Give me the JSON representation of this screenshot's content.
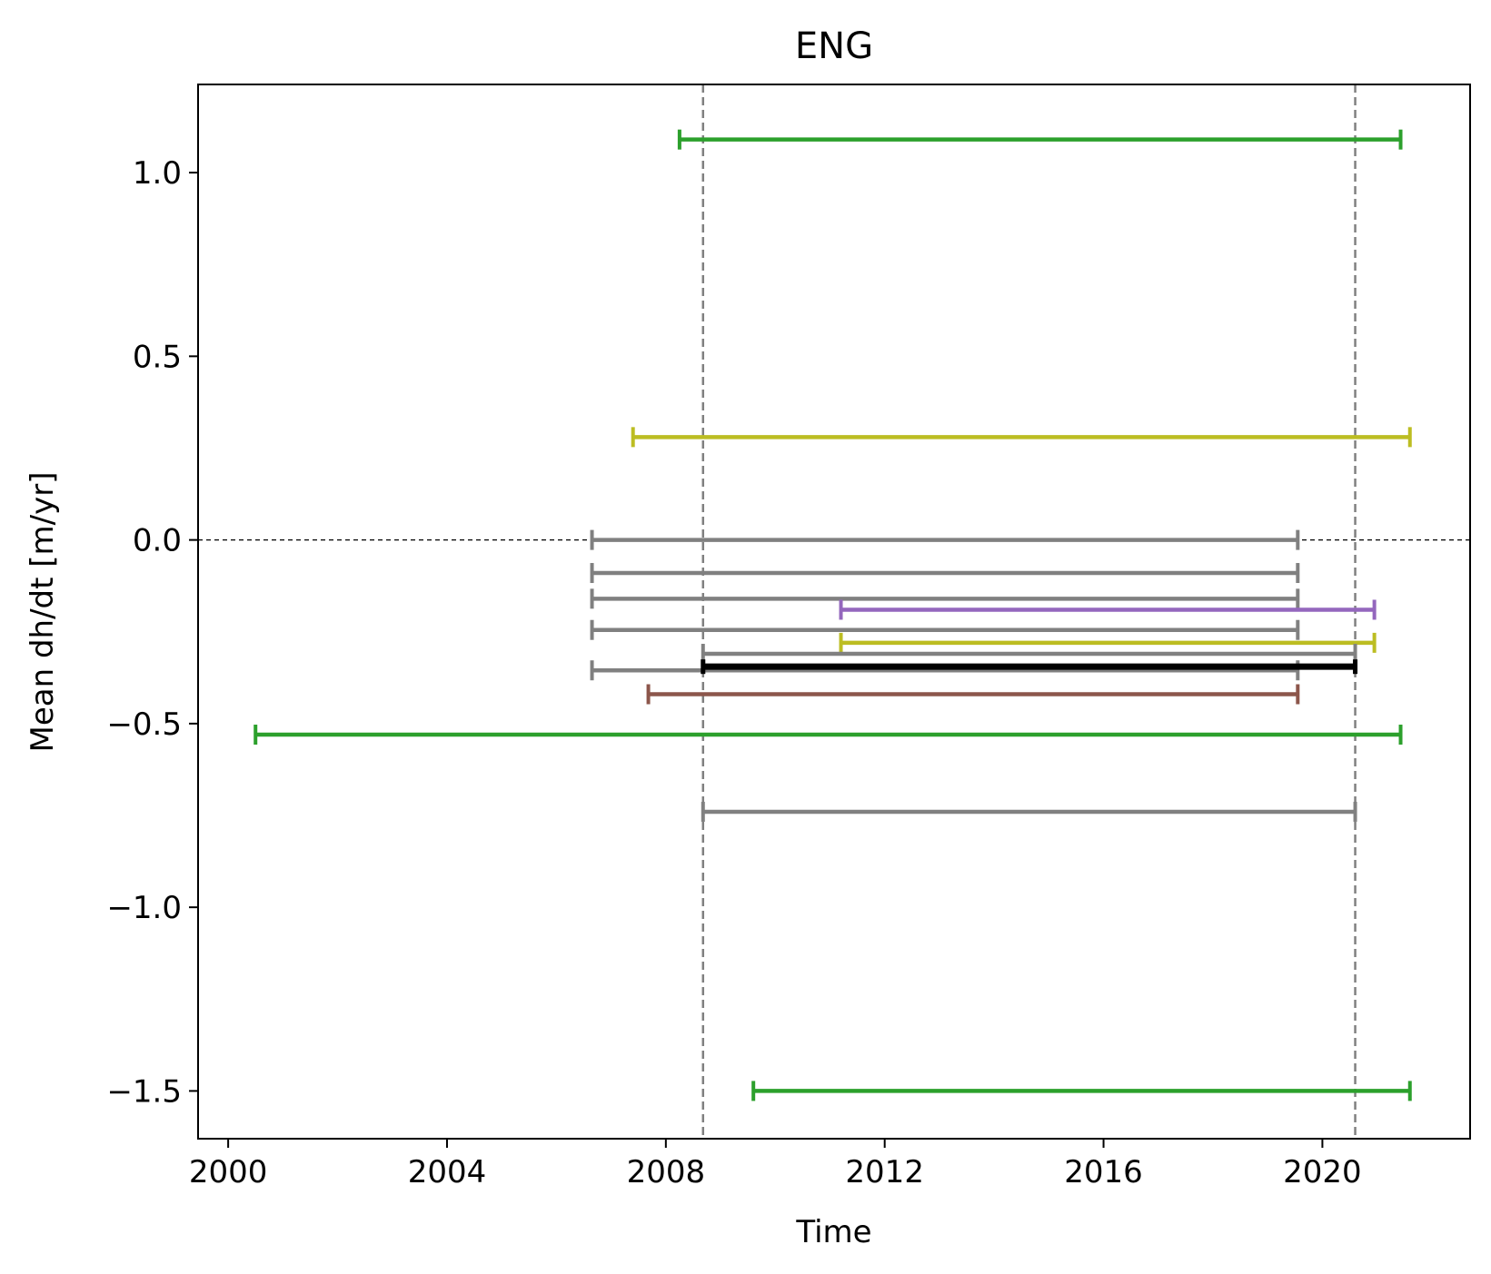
{
  "chart_data": {
    "type": "errorbar-intervals",
    "title": "ENG",
    "xlabel": "Time",
    "ylabel": "Mean dh/dt [m/yr]",
    "xlim": [
      1999.45,
      2022.7
    ],
    "ylim": [
      -1.63,
      1.24
    ],
    "xticks": [
      2000,
      2004,
      2008,
      2012,
      2016,
      2020
    ],
    "yticks": [
      1.0,
      0.5,
      0.0,
      -0.5,
      -1.0,
      -1.5
    ],
    "ytick_labels": [
      "1.0",
      "0.5",
      "0.0",
      "−0.5",
      "−1.0",
      "−1.5"
    ],
    "reference_lines": {
      "horizontal_y": 0.0,
      "vertical_x": [
        2008.68,
        2020.6
      ]
    },
    "intervals": [
      {
        "start": 2008.25,
        "end": 2021.43,
        "value": 1.09,
        "color": "#2ca02c"
      },
      {
        "start": 2007.4,
        "end": 2021.6,
        "value": 0.28,
        "color": "#bcbd22"
      },
      {
        "start": 2006.65,
        "end": 2019.55,
        "value": 0.0,
        "color": "#808080"
      },
      {
        "start": 2006.65,
        "end": 2019.55,
        "value": -0.09,
        "color": "#808080"
      },
      {
        "start": 2006.65,
        "end": 2019.55,
        "value": -0.16,
        "color": "#808080"
      },
      {
        "start": 2011.2,
        "end": 2020.95,
        "value": -0.19,
        "color": "#9467bd"
      },
      {
        "start": 2006.65,
        "end": 2019.55,
        "value": -0.245,
        "color": "#808080"
      },
      {
        "start": 2011.2,
        "end": 2020.95,
        "value": -0.28,
        "color": "#bcbd22"
      },
      {
        "start": 2008.68,
        "end": 2020.6,
        "value": -0.31,
        "color": "#808080"
      },
      {
        "start": 2006.65,
        "end": 2019.55,
        "value": -0.355,
        "color": "#808080"
      },
      {
        "start": 2008.68,
        "end": 2020.6,
        "value": -0.345,
        "color": "#000000",
        "emphasis": true
      },
      {
        "start": 2007.68,
        "end": 2019.55,
        "value": -0.42,
        "color": "#8c564b"
      },
      {
        "start": 2000.5,
        "end": 2021.43,
        "value": -0.53,
        "color": "#2ca02c"
      },
      {
        "start": 2008.68,
        "end": 2020.6,
        "value": -0.74,
        "color": "#808080"
      },
      {
        "start": 2009.6,
        "end": 2021.6,
        "value": -1.5,
        "color": "#2ca02c"
      }
    ]
  }
}
